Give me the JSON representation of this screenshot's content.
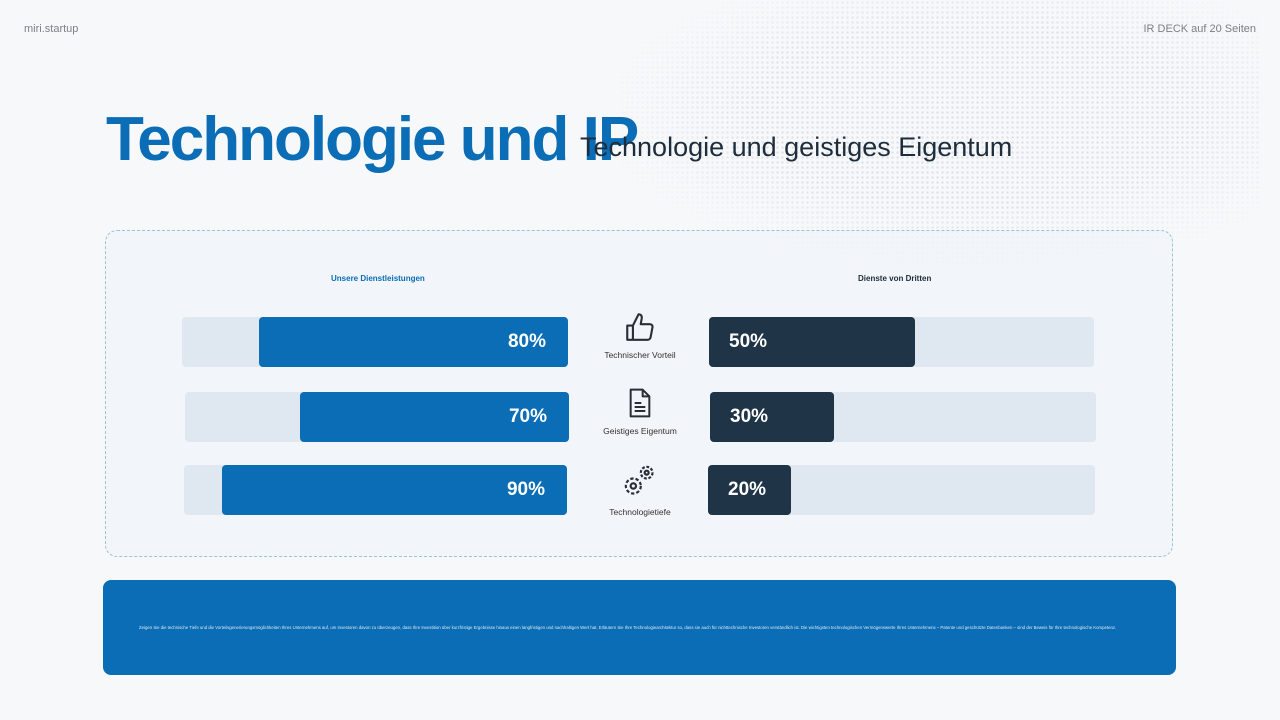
{
  "header": {
    "brand": "miri.startup",
    "deck": "IR DECK auf 20 Seiten"
  },
  "title": "Technologie und IP",
  "subtitle": "Technologie und geistiges Eigentum",
  "columns": {
    "left": "Unsere Dienstleistungen",
    "right": "Dienste von Dritten"
  },
  "rows": [
    {
      "label": "Technischer Vorteil",
      "icon": "thumbs-up-icon",
      "left_value": 80,
      "left_label": "80%",
      "right_value": 50,
      "right_label": "50%"
    },
    {
      "label": "Geistiges Eigentum",
      "icon": "document-icon",
      "left_value": 70,
      "left_label": "70%",
      "right_value": 30,
      "right_label": "30%"
    },
    {
      "label": "Technologietiefe",
      "icon": "gears-icon",
      "left_value": 90,
      "left_label": "90%",
      "right_value": 20,
      "right_label": "20%"
    }
  ],
  "footer": "Zeigen Sie die technische Tiefe und die Vorteilsgenerierungsmöglichkeiten Ihres Unternehmens auf, um Investoren davon zu überzeugen, dass Ihre Investition über kurzfristige Ergebnisse hinaus einen langfristigen und nachhaltigen Wert hat. Erläutern Sie Ihre Technologiearchitektur so, dass sie auch für nichttechnische Investoren verständlich ist. Die wichtigsten technologischen Vermögenswerte Ihres Unternehmens – Patente und geschützte Datenbanken – sind der Beweis für Ihre technologische Kompetenz.",
  "colors": {
    "primary": "#0a6db5",
    "dark": "#1f3446",
    "track": "#dfe8f1"
  }
}
